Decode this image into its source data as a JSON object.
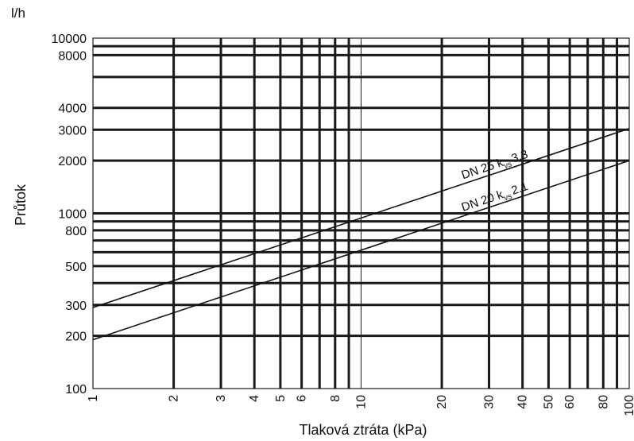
{
  "chart_data": {
    "type": "line",
    "xscale": "log",
    "yscale": "log",
    "xlim": [
      1,
      100
    ],
    "ylim": [
      100,
      10000
    ],
    "xlabel": "Tlaková ztráta (kPa)",
    "ylabel": "Průtok",
    "yunit": "l/h",
    "xtick_labels": [
      {
        "v": 1,
        "label": "1"
      },
      {
        "v": 2,
        "label": "2"
      },
      {
        "v": 3,
        "label": "3"
      },
      {
        "v": 4,
        "label": "4"
      },
      {
        "v": 5,
        "label": "5"
      },
      {
        "v": 6,
        "label": "6"
      },
      {
        "v": 8,
        "label": "8"
      },
      {
        "v": 10,
        "label": "10"
      },
      {
        "v": 20,
        "label": "20"
      },
      {
        "v": 30,
        "label": "30"
      },
      {
        "v": 40,
        "label": "40"
      },
      {
        "v": 50,
        "label": "50"
      },
      {
        "v": 60,
        "label": "60"
      },
      {
        "v": 80,
        "label": "80"
      },
      {
        "v": 100,
        "label": "100"
      }
    ],
    "ytick_labels": [
      {
        "v": 100,
        "label": "100"
      },
      {
        "v": 200,
        "label": "200"
      },
      {
        "v": 300,
        "label": "300"
      },
      {
        "v": 500,
        "label": "500"
      },
      {
        "v": 800,
        "label": "800"
      },
      {
        "v": 1000,
        "label": "1000"
      },
      {
        "v": 2000,
        "label": "2000"
      },
      {
        "v": 3000,
        "label": "3000"
      },
      {
        "v": 4000,
        "label": "4000"
      },
      {
        "v": 8000,
        "label": "8000"
      },
      {
        "v": 10000,
        "label": "10000"
      }
    ],
    "x_grid": [
      2,
      3,
      4,
      5,
      6,
      7,
      8,
      9,
      10,
      20,
      30,
      40,
      50,
      60,
      70,
      80,
      90
    ],
    "y_grid": [
      200,
      300,
      400,
      500,
      600,
      700,
      800,
      900,
      1000,
      2000,
      3000,
      4000,
      6000,
      8000,
      9000
    ],
    "series": [
      {
        "name": "DN 25 kvs 3.3",
        "label_main": "DN 25 k",
        "label_sub": "vs",
        "label_val": "3.3",
        "x": [
          1,
          100
        ],
        "y": [
          290,
          3050
        ]
      },
      {
        "name": "DN 20 kvs 2.1",
        "label_main": "DN 20 k",
        "label_sub": "vs",
        "label_val": "2.1",
        "x": [
          1,
          100
        ],
        "y": [
          190,
          2000
        ]
      }
    ]
  }
}
